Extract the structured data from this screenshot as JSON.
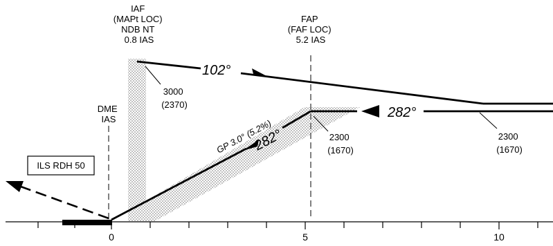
{
  "fixes": {
    "iaf": {
      "lines": [
        "IAF",
        "(MAPt LOC)",
        "NDB NT",
        "0.8 IAS"
      ]
    },
    "fap": {
      "lines": [
        "FAP",
        "(FAF LOC)",
        "5.2 IAS"
      ]
    },
    "dme": {
      "lines": [
        "DME",
        "IAS"
      ]
    }
  },
  "altitudes": {
    "iaf": {
      "alt": "3000",
      "msa": "(2370)"
    },
    "fap": {
      "alt": "2300",
      "msa": "(1670)"
    },
    "outer": {
      "alt": "2300",
      "msa": "(1670)"
    }
  },
  "courses": {
    "outbound": "102°",
    "inbound": "282°",
    "glidepath_course": "282°",
    "glidepath_label": "GP 3.0° (5.2%)"
  },
  "ils_box": "ILS RDH 50",
  "distance_axis": {
    "labels": [
      "0",
      "5",
      "10"
    ]
  },
  "colors": {
    "ink": "#000000",
    "shade": "#9a9a9a"
  }
}
